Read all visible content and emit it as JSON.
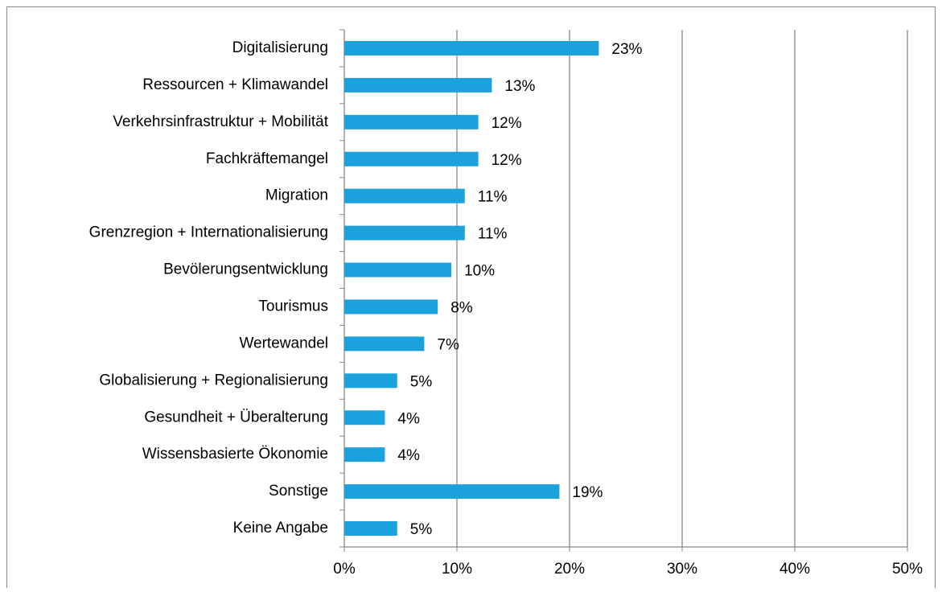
{
  "chart_data": {
    "type": "bar",
    "orientation": "horizontal",
    "categories": [
      "Digitalisierung",
      "Ressourcen + Klimawandel",
      "Verkehrsinfrastruktur + Mobilität",
      "Fachkräftemangel",
      "Migration",
      "Grenzregion + Internationalisierung",
      "Bevölerungsentwicklung",
      "Tourismus",
      "Wertewandel",
      "Globalisierung + Regionalisierung",
      "Gesundheit + Überalterung",
      "Wissensbasierte Ökonomie",
      "Sonstige",
      "Keine Angabe"
    ],
    "values": [
      22.6,
      13.1,
      11.9,
      11.9,
      10.7,
      10.7,
      9.5,
      8.3,
      7.1,
      4.7,
      3.6,
      3.6,
      19.1,
      4.7
    ],
    "value_labels": [
      "23%",
      "13%",
      "12%",
      "12%",
      "11%",
      "11%",
      "10%",
      "8%",
      "7%",
      "5%",
      "4%",
      "4%",
      "19%",
      "5%"
    ],
    "color": "#1ba1dc",
    "xlim": [
      0,
      50
    ],
    "xticks": [
      {
        "value": 0,
        "label": "0%"
      },
      {
        "value": 10,
        "label": "10%"
      },
      {
        "value": 20,
        "label": "20%"
      },
      {
        "value": 30,
        "label": "30%"
      },
      {
        "value": 40,
        "label": "40%"
      },
      {
        "value": 50,
        "label": "50%"
      }
    ],
    "grid": true
  }
}
